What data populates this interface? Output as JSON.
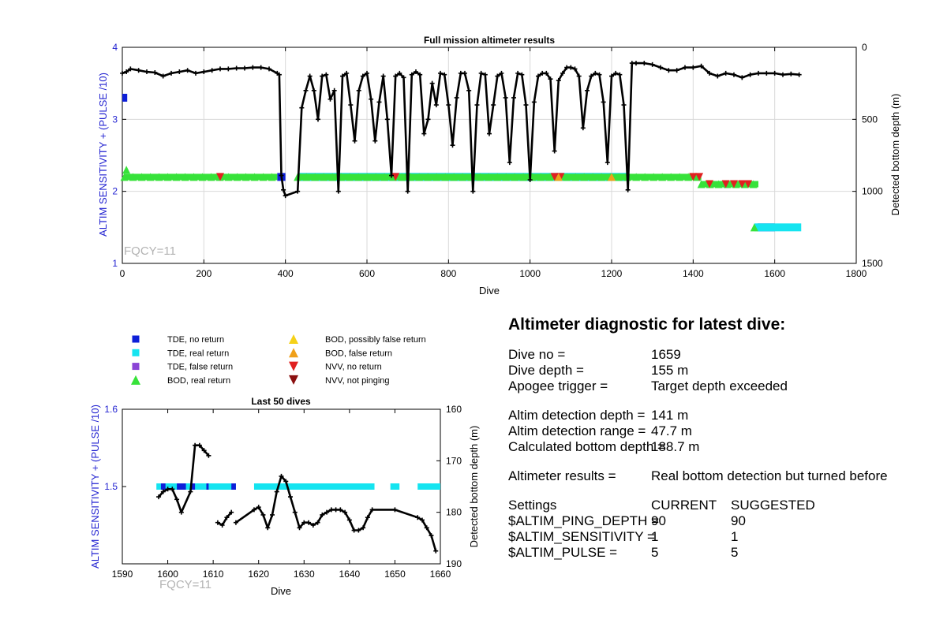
{
  "colors": {
    "blue_axis": "#1f1fd0",
    "tde_no_return": "#0d1fd8",
    "tde_real_return": "#15e4f0",
    "tde_false_return": "#8b45d6",
    "bod_real_return": "#37e23a",
    "bod_possibly_false": "#f5d118",
    "bod_false_return": "#f0a01a",
    "nvv_no_return": "#e02020",
    "nvv_not_pinging": "#8b1010",
    "depth_line": "#000000"
  },
  "chart_data": [
    {
      "id": "full",
      "type": "scatter",
      "title": "Full mission altimeter results",
      "xlabel": "Dive",
      "ylabel_left": "ALTIM SENSITIVITY + (PULSE /10)",
      "ylabel_right": "Detected bottom depth (m)",
      "xlim": [
        0,
        1800
      ],
      "ylim_left": [
        1,
        4
      ],
      "ylim_right": [
        0,
        1500
      ],
      "right_axis_inverted": true,
      "grid": true,
      "xticks": [
        "0",
        "200",
        "400",
        "600",
        "800",
        "1000",
        "1200",
        "1400",
        "1600",
        "1800"
      ],
      "yticks_left": [
        "1",
        "2",
        "3",
        "4"
      ],
      "yticks_right": [
        "0",
        "500",
        "1000",
        "1500"
      ],
      "annotation": "FQCY=11",
      "series": [
        {
          "kind": "tde_no_return",
          "segments": [
            [
              0,
              12,
              3.3
            ],
            [
              380,
              400,
              2.2
            ],
            [
              430,
              1240,
              2.2
            ],
            [
              1558,
              1600,
              1.5
            ]
          ]
        },
        {
          "kind": "tde_real_return",
          "segments": [
            [
              430,
              1240,
              2.2
            ],
            [
              1550,
              1665,
              1.5
            ]
          ]
        },
        {
          "kind": "bod_real_return",
          "segments": [
            [
              5,
              380,
              2.2
            ],
            [
              430,
              1420,
              2.2
            ],
            [
              1420,
              1560,
              2.1
            ]
          ],
          "points": [
            [
              10,
              2.3
            ],
            [
              1550,
              1.5
            ]
          ]
        },
        {
          "kind": "nvv_no_return",
          "points": [
            [
              240,
              2.2
            ],
            [
              670,
              2.2
            ],
            [
              1060,
              2.2
            ],
            [
              1075,
              2.2
            ],
            [
              1400,
              2.2
            ],
            [
              1415,
              2.2
            ],
            [
              1440,
              2.1
            ],
            [
              1480,
              2.1
            ],
            [
              1500,
              2.1
            ],
            [
              1520,
              2.1
            ],
            [
              1535,
              2.1
            ]
          ]
        },
        {
          "kind": "bod_false_return",
          "points": [
            [
              1070,
              2.2
            ],
            [
              1200,
              2.2
            ]
          ]
        },
        {
          "kind": "depth_line",
          "axis": "right",
          "points": [
            [
              0,
              180
            ],
            [
              10,
              170
            ],
            [
              20,
              150
            ],
            [
              40,
              160
            ],
            [
              60,
              170
            ],
            [
              80,
              175
            ],
            [
              100,
              200
            ],
            [
              120,
              180
            ],
            [
              140,
              170
            ],
            [
              160,
              160
            ],
            [
              180,
              180
            ],
            [
              200,
              170
            ],
            [
              220,
              160
            ],
            [
              240,
              150
            ],
            [
              260,
              150
            ],
            [
              280,
              145
            ],
            [
              300,
              145
            ],
            [
              320,
              140
            ],
            [
              340,
              140
            ],
            [
              360,
              150
            ],
            [
              380,
              180
            ],
            [
              385,
              190
            ],
            [
              390,
              890
            ],
            [
              395,
              990
            ],
            [
              400,
              1030
            ],
            [
              430,
              1000
            ],
            [
              440,
              420
            ],
            [
              450,
              300
            ],
            [
              460,
              200
            ],
            [
              470,
              300
            ],
            [
              480,
              500
            ],
            [
              490,
              200
            ],
            [
              500,
              190
            ],
            [
              510,
              360
            ],
            [
              520,
              300
            ],
            [
              530,
              1000
            ],
            [
              540,
              200
            ],
            [
              550,
              180
            ],
            [
              560,
              400
            ],
            [
              570,
              650
            ],
            [
              580,
              300
            ],
            [
              590,
              200
            ],
            [
              600,
              180
            ],
            [
              610,
              360
            ],
            [
              620,
              650
            ],
            [
              630,
              380
            ],
            [
              640,
              200
            ],
            [
              650,
              500
            ],
            [
              660,
              890
            ],
            [
              670,
              200
            ],
            [
              680,
              180
            ],
            [
              690,
              210
            ],
            [
              700,
              1000
            ],
            [
              710,
              190
            ],
            [
              720,
              170
            ],
            [
              730,
              190
            ],
            [
              740,
              600
            ],
            [
              750,
              500
            ],
            [
              760,
              250
            ],
            [
              770,
              400
            ],
            [
              780,
              180
            ],
            [
              790,
              190
            ],
            [
              800,
              400
            ],
            [
              810,
              680
            ],
            [
              820,
              350
            ],
            [
              830,
              180
            ],
            [
              840,
              180
            ],
            [
              850,
              300
            ],
            [
              860,
              1000
            ],
            [
              870,
              400
            ],
            [
              880,
              180
            ],
            [
              890,
              190
            ],
            [
              900,
              600
            ],
            [
              910,
              400
            ],
            [
              920,
              200
            ],
            [
              930,
              180
            ],
            [
              940,
              350
            ],
            [
              950,
              800
            ],
            [
              960,
              350
            ],
            [
              970,
              180
            ],
            [
              980,
              190
            ],
            [
              990,
              400
            ],
            [
              1000,
              920
            ],
            [
              1010,
              380
            ],
            [
              1020,
              200
            ],
            [
              1030,
              180
            ],
            [
              1040,
              180
            ],
            [
              1050,
              220
            ],
            [
              1060,
              720
            ],
            [
              1070,
              230
            ],
            [
              1080,
              180
            ],
            [
              1090,
              140
            ],
            [
              1100,
              140
            ],
            [
              1110,
              150
            ],
            [
              1120,
              200
            ],
            [
              1130,
              560
            ],
            [
              1140,
              300
            ],
            [
              1150,
              200
            ],
            [
              1160,
              180
            ],
            [
              1170,
              190
            ],
            [
              1180,
              380
            ],
            [
              1190,
              800
            ],
            [
              1200,
              200
            ],
            [
              1210,
              180
            ],
            [
              1220,
              190
            ],
            [
              1230,
              400
            ],
            [
              1240,
              990
            ],
            [
              1250,
              110
            ],
            [
              1260,
              110
            ],
            [
              1280,
              110
            ],
            [
              1300,
              120
            ],
            [
              1320,
              140
            ],
            [
              1340,
              160
            ],
            [
              1360,
              160
            ],
            [
              1380,
              140
            ],
            [
              1400,
              140
            ],
            [
              1420,
              130
            ],
            [
              1440,
              180
            ],
            [
              1460,
              200
            ],
            [
              1480,
              180
            ],
            [
              1500,
              190
            ],
            [
              1520,
              210
            ],
            [
              1540,
              190
            ],
            [
              1560,
              180
            ],
            [
              1580,
              180
            ],
            [
              1600,
              180
            ],
            [
              1620,
              190
            ],
            [
              1640,
              185
            ],
            [
              1660,
              190
            ]
          ]
        }
      ]
    },
    {
      "id": "last50",
      "type": "scatter",
      "title": "Last 50 dives",
      "xlabel": "Dive",
      "ylabel_left": "ALTIM SENSITIVITY + (PULSE /10)",
      "ylabel_right": "Detected bottom depth (m)",
      "xlim": [
        1590,
        1660
      ],
      "ylim_left": [
        1.4,
        1.6
      ],
      "ylim_right": [
        160,
        190
      ],
      "right_axis_inverted": true,
      "grid": false,
      "xticks": [
        "1590",
        "1600",
        "1610",
        "1620",
        "1630",
        "1640",
        "1650",
        "1660"
      ],
      "yticks_left": [
        "1.6",
        "1.5"
      ],
      "yticks_right": [
        "160",
        "170",
        "180",
        "190"
      ],
      "annotation": "FQCY=11",
      "series": [
        {
          "kind": "tde_real_return",
          "segments": [
            [
              1597.5,
              1615,
              1.5
            ],
            [
              1619,
              1645.5,
              1.5
            ],
            [
              1649,
              1651,
              1.5
            ],
            [
              1655,
              1660,
              1.5
            ]
          ]
        },
        {
          "kind": "tde_no_return",
          "segments": [
            [
              1598.5,
              1599.5,
              1.5
            ],
            [
              1602,
              1604,
              1.5
            ],
            [
              1605,
              1606,
              1.5
            ],
            [
              1608.5,
              1609,
              1.5
            ],
            [
              1614,
              1615,
              1.5
            ]
          ]
        },
        {
          "kind": "depth_line",
          "axis": "right",
          "breaks_after": [
            1609,
            1614
          ],
          "points": [
            [
              1598,
              177
            ],
            [
              1599,
              176
            ],
            [
              1600,
              175.5
            ],
            [
              1601,
              175.5
            ],
            [
              1602,
              177.5
            ],
            [
              1603,
              180
            ],
            [
              1605,
              176
            ],
            [
              1606,
              167
            ],
            [
              1607,
              167
            ],
            [
              1608,
              168
            ],
            [
              1609,
              169
            ],
            [
              1611,
              182
            ],
            [
              1612,
              182.5
            ],
            [
              1613,
              181
            ],
            [
              1614,
              180
            ],
            [
              1615,
              182
            ],
            [
              1619,
              179.5
            ],
            [
              1620,
              179
            ],
            [
              1621,
              180.5
            ],
            [
              1622,
              183
            ],
            [
              1623,
              180.5
            ],
            [
              1624,
              176
            ],
            [
              1625,
              173
            ],
            [
              1626,
              174
            ],
            [
              1627,
              177
            ],
            [
              1628,
              180
            ],
            [
              1629,
              183
            ],
            [
              1630,
              182
            ],
            [
              1631,
              182
            ],
            [
              1632,
              182.5
            ],
            [
              1633,
              182
            ],
            [
              1634,
              180.5
            ],
            [
              1635,
              180
            ],
            [
              1636,
              179.5
            ],
            [
              1637,
              179.5
            ],
            [
              1638,
              179.5
            ],
            [
              1639,
              180
            ],
            [
              1640,
              181.5
            ],
            [
              1641,
              183.5
            ],
            [
              1642,
              183.5
            ],
            [
              1643,
              183
            ],
            [
              1644,
              181
            ],
            [
              1645,
              179.5
            ],
            [
              1650,
              179.5
            ],
            [
              1655,
              181
            ],
            [
              1656,
              181.5
            ],
            [
              1657,
              183
            ],
            [
              1658,
              184.5
            ],
            [
              1659,
              187.5
            ]
          ]
        }
      ]
    }
  ],
  "legend": [
    {
      "label": "TDE, no return",
      "marker": "square",
      "color_key": "tde_no_return"
    },
    {
      "label": "TDE, real return",
      "marker": "square",
      "color_key": "tde_real_return"
    },
    {
      "label": "TDE, false return",
      "marker": "square",
      "color_key": "tde_false_return"
    },
    {
      "label": "BOD, real return",
      "marker": "triangle-up",
      "color_key": "bod_real_return"
    },
    {
      "label": "BOD, possibly false return",
      "marker": "triangle-up",
      "color_key": "bod_possibly_false"
    },
    {
      "label": "BOD, false return",
      "marker": "triangle-up",
      "color_key": "bod_false_return"
    },
    {
      "label": "NVV, no return",
      "marker": "triangle-down",
      "color_key": "nvv_no_return"
    },
    {
      "label": "NVV, not pinging",
      "marker": "triangle-down",
      "color_key": "nvv_not_pinging"
    }
  ],
  "diagnostic": {
    "heading": "Altimeter diagnostic for latest dive:",
    "dive_no": {
      "label": "Dive no =",
      "value": "1659"
    },
    "dive_depth": {
      "label": "Dive depth =",
      "value": "155 m"
    },
    "apogee_trigger": {
      "label": "Apogee trigger =",
      "value": "Target depth exceeded"
    },
    "detection_depth": {
      "label": "Altim detection depth =",
      "value": "141 m"
    },
    "detection_range": {
      "label": "Altim detection range =",
      "value": "47.7 m"
    },
    "bottom_depth": {
      "label": "Calculated bottom depth =",
      "value": "188.7 m"
    },
    "results": {
      "label": "Altimeter results =",
      "value": "Real bottom detection but turned before"
    },
    "settings": {
      "header": {
        "label": "Settings",
        "current": "CURRENT",
        "suggested": "SUGGESTED"
      },
      "rows": [
        {
          "label": "$ALTIM_PING_DEPTH =",
          "current": "90",
          "suggested": "90"
        },
        {
          "label": "$ALTIM_SENSITIVITY =",
          "current": "1",
          "suggested": "1"
        },
        {
          "label": "$ALTIM_PULSE =",
          "current": "5",
          "suggested": "5"
        }
      ]
    }
  }
}
